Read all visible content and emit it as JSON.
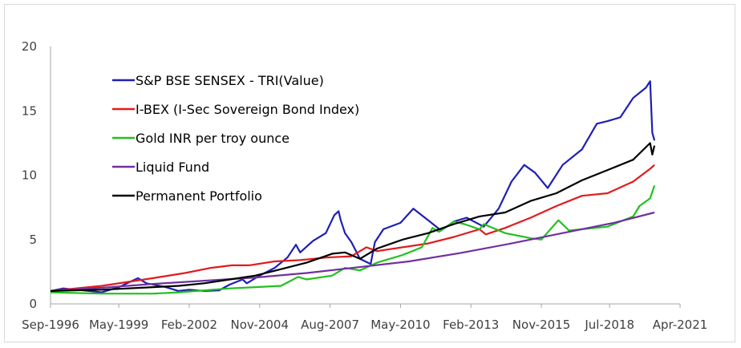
{
  "chart_data": {
    "type": "line",
    "title": "",
    "xlabel": "",
    "ylabel": "",
    "ylim": [
      0,
      20
    ],
    "yticks": [
      "0",
      "5",
      "10",
      "15",
      "20"
    ],
    "xlim": [
      "1996-09",
      "2021-04"
    ],
    "xticks": [
      "Sep-1996",
      "May-1999",
      "Feb-2002",
      "Nov-2004",
      "Aug-2007",
      "May-2010",
      "Feb-2013",
      "Nov-2015",
      "Jul-2018",
      "Apr-2021"
    ],
    "grid": false,
    "legend_position": "top-left (inside)",
    "series": [
      {
        "name": "S&P BSE SENSEX - TRI(Value)",
        "color": "#1f1fb4",
        "x": [
          "1996-09",
          "1997-03",
          "1997-09",
          "1998-03",
          "1998-09",
          "1999-05",
          "2000-02",
          "2000-06",
          "2001-03",
          "2001-09",
          "2002-02",
          "2002-09",
          "2003-04",
          "2003-09",
          "2004-03",
          "2004-05",
          "2004-11",
          "2005-06",
          "2005-12",
          "2006-04",
          "2006-06",
          "2006-12",
          "2007-06",
          "2007-10",
          "2007-12",
          "2008-01",
          "2008-03",
          "2008-06",
          "2008-10",
          "2009-03",
          "2009-05",
          "2009-09",
          "2010-05",
          "2010-11",
          "2011-06",
          "2011-12",
          "2012-06",
          "2012-12",
          "2013-08",
          "2014-03",
          "2014-09",
          "2015-03",
          "2015-08",
          "2016-02",
          "2016-09",
          "2017-06",
          "2018-01",
          "2018-06",
          "2018-12",
          "2019-06",
          "2019-12",
          "2020-02",
          "2020-03",
          "2020-04"
        ],
        "y": [
          1.0,
          1.2,
          1.1,
          1.0,
          0.9,
          1.3,
          2.0,
          1.6,
          1.3,
          1.0,
          1.1,
          1.0,
          1.05,
          1.5,
          1.9,
          1.6,
          2.2,
          2.8,
          3.6,
          4.6,
          4.0,
          4.9,
          5.5,
          6.9,
          7.2,
          6.5,
          5.5,
          4.8,
          3.5,
          3.1,
          4.8,
          5.8,
          6.3,
          7.4,
          6.5,
          5.7,
          6.4,
          6.7,
          6.0,
          7.4,
          9.5,
          10.8,
          10.2,
          9.0,
          10.8,
          12.0,
          14.0,
          14.2,
          14.5,
          16.0,
          16.8,
          17.3,
          13.3,
          12.7
        ]
      },
      {
        "name": "I-BEX (I-Sec Sovereign Bond Index)",
        "color": "#e21b1b",
        "x": [
          "1996-09",
          "1998-09",
          "2000-09",
          "2001-12",
          "2002-12",
          "2003-10",
          "2004-06",
          "2005-06",
          "2006-06",
          "2007-06",
          "2008-06",
          "2009-01",
          "2009-06",
          "2010-06",
          "2011-06",
          "2012-06",
          "2013-06",
          "2013-09",
          "2014-06",
          "2015-06",
          "2016-06",
          "2017-06",
          "2018-06",
          "2019-06",
          "2020-02",
          "2020-04"
        ],
        "y": [
          1.0,
          1.4,
          2.0,
          2.4,
          2.8,
          3.0,
          3.0,
          3.3,
          3.4,
          3.6,
          3.7,
          4.4,
          4.1,
          4.4,
          4.7,
          5.2,
          5.8,
          5.4,
          5.9,
          6.7,
          7.6,
          8.4,
          8.6,
          9.5,
          10.5,
          10.8
        ]
      },
      {
        "name": "Gold INR per troy ounce",
        "color": "#22c01e",
        "x": [
          "1996-09",
          "1998-09",
          "2000-09",
          "2001-09",
          "2002-09",
          "2003-09",
          "2004-09",
          "2005-09",
          "2006-05",
          "2006-09",
          "2007-09",
          "2008-03",
          "2008-10",
          "2009-06",
          "2010-06",
          "2011-03",
          "2011-08",
          "2011-11",
          "2012-06",
          "2012-11",
          "2013-06",
          "2013-08",
          "2014-06",
          "2015-06",
          "2015-11",
          "2016-07",
          "2016-12",
          "2017-06",
          "2018-06",
          "2019-06",
          "2019-09",
          "2020-02",
          "2020-04"
        ],
        "y": [
          0.9,
          0.8,
          0.8,
          0.9,
          1.05,
          1.2,
          1.3,
          1.4,
          2.1,
          1.9,
          2.2,
          2.8,
          2.6,
          3.2,
          3.8,
          4.4,
          5.9,
          5.6,
          6.4,
          6.2,
          5.8,
          6.2,
          5.5,
          5.1,
          5.0,
          6.5,
          5.7,
          5.8,
          6.0,
          6.8,
          7.6,
          8.2,
          9.2
        ]
      },
      {
        "name": "Liquid Fund",
        "color": "#7030a0",
        "x": [
          "1996-09",
          "1998-09",
          "2000-09",
          "2002-09",
          "2004-09",
          "2006-09",
          "2008-09",
          "2010-09",
          "2012-09",
          "2014-09",
          "2016-09",
          "2018-09",
          "2020-04"
        ],
        "y": [
          1.0,
          1.25,
          1.55,
          1.8,
          2.05,
          2.4,
          2.85,
          3.3,
          3.95,
          4.7,
          5.5,
          6.3,
          7.1
        ]
      },
      {
        "name": "Permanent Portfolio",
        "color": "#000000",
        "x": [
          "1996-09",
          "1998-09",
          "2000-09",
          "2001-09",
          "2002-09",
          "2003-09",
          "2004-09",
          "2005-09",
          "2006-09",
          "2007-09",
          "2008-03",
          "2008-10",
          "2009-06",
          "2010-06",
          "2011-06",
          "2012-06",
          "2013-06",
          "2014-06",
          "2015-06",
          "2016-06",
          "2017-06",
          "2018-06",
          "2019-06",
          "2020-02",
          "2020-03",
          "2020-04"
        ],
        "y": [
          1.0,
          1.1,
          1.3,
          1.4,
          1.6,
          1.9,
          2.2,
          2.7,
          3.2,
          3.9,
          4.0,
          3.5,
          4.3,
          5.0,
          5.5,
          6.2,
          6.8,
          7.1,
          8.0,
          8.6,
          9.6,
          10.4,
          11.2,
          12.5,
          11.6,
          12.3
        ]
      }
    ]
  }
}
